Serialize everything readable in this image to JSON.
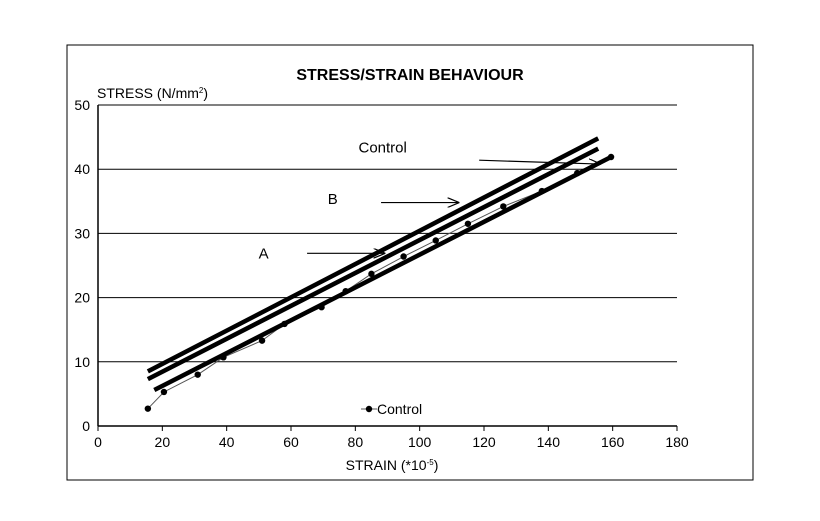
{
  "chart_data": {
    "type": "line",
    "title": "STRESS/STRAIN BEHAVIOUR",
    "ylabel_main": "STRESS (N/mm",
    "ylabel_sup": "2",
    "ylabel_tail": ")",
    "xlabel_main": "STRAIN (*10",
    "xlabel_sup": "-5",
    "xlabel_tail": ")",
    "xlim": [
      0,
      180
    ],
    "ylim": [
      0,
      50
    ],
    "xticks": [
      "0",
      "20",
      "40",
      "60",
      "80",
      "100",
      "120",
      "140",
      "160",
      "180"
    ],
    "yticks": [
      "0",
      "10",
      "20",
      "30",
      "40",
      "50"
    ],
    "grid": "horizontal",
    "series": [
      {
        "name": "Control",
        "style": "markers",
        "x": [
          15.5,
          20.5,
          31,
          39,
          51,
          58,
          69.5,
          77,
          85,
          95,
          105,
          115,
          126,
          138,
          149,
          159.5
        ],
        "y": [
          2.7,
          5.3,
          8.0,
          10.7,
          13.3,
          15.9,
          18.5,
          21.0,
          23.7,
          26.4,
          28.9,
          31.5,
          34.2,
          36.6,
          39.4,
          41.9
        ]
      },
      {
        "name": "A",
        "style": "thick",
        "x": [
          17.5,
          159.5
        ],
        "y": [
          5.6,
          41.9
        ]
      },
      {
        "name": "B",
        "style": "thick",
        "x": [
          15.5,
          155.5
        ],
        "y": [
          7.3,
          43.2
        ]
      },
      {
        "name": "Control",
        "style": "thick",
        "x": [
          15.5,
          155.5
        ],
        "y": [
          8.5,
          44.8
        ]
      }
    ],
    "annotations": [
      {
        "text": "Control",
        "label_at": [
          88.5,
          42.6
        ],
        "arrow_from": [
          118.5,
          41.4
        ],
        "arrow_to": [
          156,
          40.8
        ]
      },
      {
        "text": "B",
        "label_at": [
          73,
          34.6
        ],
        "arrow_from": [
          88,
          34.8
        ],
        "arrow_to": [
          112,
          34.8
        ]
      },
      {
        "text": "A",
        "label_at": [
          51.5,
          26.1
        ],
        "arrow_from": [
          65,
          26.9
        ],
        "arrow_to": [
          89,
          26.9
        ]
      }
    ],
    "legend": {
      "label": "Control",
      "placement": "bottom-center"
    }
  }
}
